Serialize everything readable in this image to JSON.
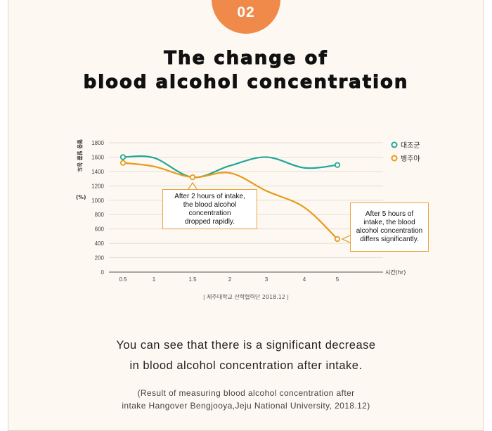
{
  "badge": "02",
  "title_line1": "The change of",
  "title_line2": "blood alcohol concentration",
  "chart_data": {
    "type": "line",
    "ylabel": "혈중 알콜 농도",
    "ylabel_unit": "(%)",
    "xlabel": "시간(hr)",
    "ylim": [
      0,
      1800
    ],
    "yticks": [
      0,
      200,
      400,
      600,
      800,
      1000,
      1200,
      1400,
      1600,
      1800
    ],
    "xticks": [
      "0.5",
      "1",
      "1.5",
      "2",
      "3",
      "4",
      "5"
    ],
    "grid": true,
    "legend_position": "top-right",
    "series": [
      {
        "name": "대조군",
        "color": "#1fa79a",
        "points": [
          {
            "x": 0.5,
            "y": 1600
          },
          {
            "x": 1,
            "y": 1590
          },
          {
            "x": 1.5,
            "y": 1320
          },
          {
            "x": 2,
            "y": 1480
          },
          {
            "x": 3,
            "y": 1600
          },
          {
            "x": 4,
            "y": 1450
          },
          {
            "x": 5,
            "y": 1490
          }
        ]
      },
      {
        "name": "벵주야",
        "color": "#e89a1a",
        "points": [
          {
            "x": 0.5,
            "y": 1520
          },
          {
            "x": 1,
            "y": 1470
          },
          {
            "x": 1.5,
            "y": 1320
          },
          {
            "x": 2,
            "y": 1380
          },
          {
            "x": 3,
            "y": 1130
          },
          {
            "x": 4,
            "y": 900
          },
          {
            "x": 5,
            "y": 460
          }
        ]
      }
    ],
    "markers": [
      {
        "series": 0,
        "x": 0.5
      },
      {
        "series": 0,
        "x": 5
      },
      {
        "series": 1,
        "x": 0.5
      },
      {
        "series": 1,
        "x": 1.5
      },
      {
        "series": 1,
        "x": 5
      }
    ],
    "source": "| 제주대학교 산학협력단 2018.12 |",
    "annotations": [
      "After 2 hours of intake, the blood alcohol concentration dropped rapidly.",
      "After 5 hours of intake, the blood alcohol concentration differs significantly."
    ]
  },
  "callout1_lines": [
    "After 2 hours of intake,",
    "the blood alcohol",
    "concentration",
    "dropped rapidly."
  ],
  "callout2_lines": [
    "After 5 hours of",
    "intake, the blood",
    "alcohol concentration",
    "differs significantly."
  ],
  "body_line1": "You can see that there is a significant decrease",
  "body_line2": "in blood alcohol concentration after intake.",
  "ref_line1": "(Result of measuring blood alcohol concentration after",
  "ref_line2": "intake Hangover Bengjooya,Jeju National University, 2018.12)"
}
